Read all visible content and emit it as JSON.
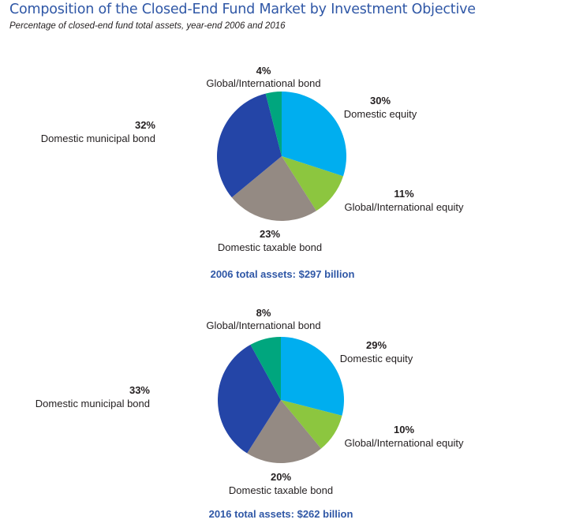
{
  "title": "Composition of the Closed-End Fund Market by Investment Objective",
  "subtitle": "Percentage of closed-end fund total assets, year-end 2006 and 2016",
  "chart_data": [
    {
      "type": "pie",
      "total_label": "2006 total assets: $297 billion",
      "slices": [
        {
          "label": "Domestic equity",
          "value": 30,
          "value_label": "30%",
          "color": "#00aeef"
        },
        {
          "label": "Global/International equity",
          "value": 11,
          "value_label": "11%",
          "color": "#8cc63f"
        },
        {
          "label": "Domestic taxable bond",
          "value": 23,
          "value_label": "23%",
          "color": "#948a83"
        },
        {
          "label": "Domestic municipal bond",
          "value": 32,
          "value_label": "32%",
          "color": "#2445a7"
        },
        {
          "label": "Global/International bond",
          "value": 4,
          "value_label": "4%",
          "color": "#00a67e"
        }
      ]
    },
    {
      "type": "pie",
      "total_label": "2016 total assets: $262 billion",
      "slices": [
        {
          "label": "Domestic equity",
          "value": 29,
          "value_label": "29%",
          "color": "#00aeef"
        },
        {
          "label": "Global/International equity",
          "value": 10,
          "value_label": "10%",
          "color": "#8cc63f"
        },
        {
          "label": "Domestic taxable bond",
          "value": 20,
          "value_label": "20%",
          "color": "#948a83"
        },
        {
          "label": "Domestic municipal bond",
          "value": 33,
          "value_label": "33%",
          "color": "#2445a7"
        },
        {
          "label": "Global/International bond",
          "value": 8,
          "value_label": "8%",
          "color": "#00a67e"
        }
      ]
    }
  ]
}
